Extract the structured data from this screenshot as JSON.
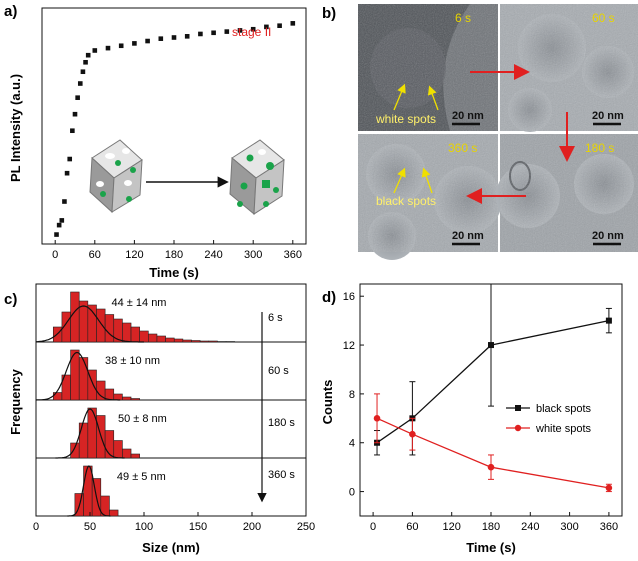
{
  "colors": {
    "black": "#111111",
    "red": "#e02020",
    "bar_red": "#d62424",
    "yellow": "#f0e000"
  },
  "chart_data": [
    {
      "panel": "a)",
      "type": "scatter",
      "xlabel": "Time (s)",
      "ylabel": "PL Intensity (a.u.)",
      "annotation": "stage II",
      "xlim": [
        -20,
        380
      ],
      "ylim": [
        0,
        100
      ],
      "xticks": [
        "0",
        "60",
        "120",
        "180",
        "240",
        "300",
        "360"
      ],
      "y_ticks_shown": false,
      "x": [
        2,
        6,
        10,
        14,
        18,
        22,
        26,
        30,
        34,
        38,
        42,
        46,
        50,
        60,
        80,
        100,
        120,
        140,
        160,
        180,
        200,
        220,
        240,
        260,
        280,
        300,
        320,
        340,
        360
      ],
      "y": [
        4,
        8,
        10,
        18,
        30,
        36,
        48,
        55,
        62,
        68,
        73,
        77,
        80,
        82,
        83,
        84,
        85,
        86,
        87,
        87.5,
        88,
        89,
        89.5,
        90,
        90.5,
        91,
        92,
        92.5,
        93.5
      ]
    },
    {
      "panel": "c)",
      "type": "bar",
      "xlabel": "Size (nm)",
      "ylabel": "Frequency",
      "xlim": [
        0,
        250
      ],
      "xticks": [
        "0",
        "50",
        "100",
        "150",
        "200",
        "250"
      ],
      "bin_width": 8,
      "arrow_labels": [
        "6 s",
        "60 s",
        "180 s",
        "360 s"
      ],
      "series": [
        {
          "label": "44 ± 14 nm",
          "bins_start": 16,
          "values": [
            0.3,
            0.6,
            1.0,
            0.82,
            0.74,
            0.66,
            0.55,
            0.46,
            0.38,
            0.3,
            0.22,
            0.16,
            0.12,
            0.08,
            0.06,
            0.04,
            0.03,
            0.02,
            0.02,
            0.01,
            0.01
          ],
          "fit": {
            "mean": 44,
            "sd": 14,
            "peak": 0.72
          }
        },
        {
          "label": "38 ± 10 nm",
          "bins_start": 16,
          "values": [
            0.15,
            0.5,
            1.0,
            0.85,
            0.6,
            0.38,
            0.22,
            0.12,
            0.06,
            0.03
          ],
          "fit": {
            "mean": 38,
            "sd": 10,
            "peak": 0.95
          }
        },
        {
          "label": "50 ± 8 nm",
          "bins_start": 32,
          "values": [
            0.3,
            0.7,
            1.0,
            0.85,
            0.55,
            0.35,
            0.18,
            0.08
          ],
          "fit": {
            "mean": 50,
            "sd": 8,
            "peak": 0.98
          }
        },
        {
          "label": "49 ± 5 nm",
          "bins_start": 36,
          "values": [
            0.45,
            1.0,
            0.75,
            0.4,
            0.12
          ],
          "fit": {
            "mean": 49,
            "sd": 5,
            "peak": 1.0
          }
        }
      ]
    },
    {
      "panel": "d)",
      "type": "line",
      "xlabel": "Time (s)",
      "ylabel": "Counts",
      "xlim": [
        -20,
        380
      ],
      "ylim": [
        -2,
        17
      ],
      "xticks": [
        0,
        60,
        120,
        180,
        240,
        300,
        360
      ],
      "yticks": [
        0,
        4,
        8,
        12,
        16
      ],
      "legend_position": "center-right",
      "series": [
        {
          "name": "black spots",
          "color": "#111111",
          "x": [
            6,
            60,
            180,
            360
          ],
          "y": [
            4,
            6,
            12,
            14
          ],
          "err": [
            1,
            3,
            5,
            1
          ]
        },
        {
          "name": "white spots",
          "color": "#e02020",
          "x": [
            6,
            60,
            180,
            360
          ],
          "y": [
            6,
            4.7,
            2,
            0.3
          ],
          "err": [
            2,
            1.3,
            1,
            0.3
          ]
        }
      ]
    }
  ],
  "panel_b": {
    "label": "b)",
    "frames": [
      {
        "time": "6 s",
        "scale": "20 nm"
      },
      {
        "time": "60 s",
        "scale": "20 nm"
      },
      {
        "time": "360 s",
        "scale": "20 nm"
      },
      {
        "time": "180 s",
        "scale": "20 nm"
      }
    ],
    "annotations": [
      "white spots",
      "black spots"
    ]
  }
}
